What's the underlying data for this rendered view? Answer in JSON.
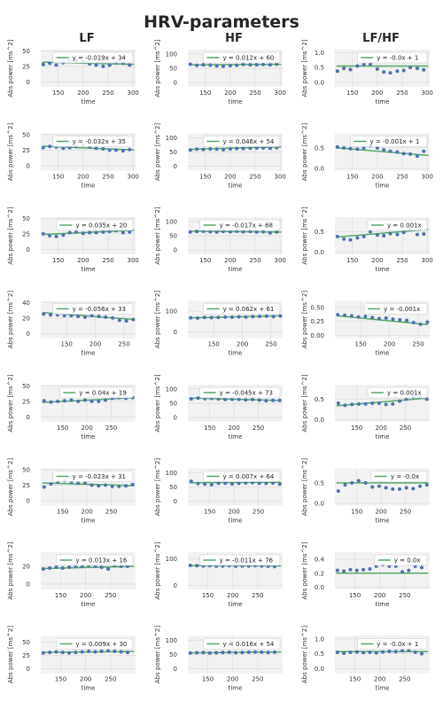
{
  "chart_data": {
    "type": "scatter",
    "title": "HRV-parameters",
    "columns": [
      "LF",
      "HF",
      "LF/HF"
    ],
    "xlabel": "time",
    "ylabel": "Abs power [ms^2]",
    "colors": {
      "points": "#4c72b0",
      "fit": "#55a868",
      "background": "#f2f2f2",
      "grid": "#dddddd"
    },
    "grid": true,
    "legend_position": "upper-right",
    "rows": [
      {
        "xlim": [
          115,
          305
        ],
        "xticks": [
          150,
          200,
          250,
          300
        ],
        "x": [
          120,
          133,
          146,
          160,
          173,
          186,
          200,
          213,
          226,
          240,
          253,
          266,
          280,
          293
        ],
        "panels": [
          {
            "column": "LF",
            "ylim": [
              -8,
              52
            ],
            "yticks": [
              0,
              25,
              50
            ],
            "fit": "y = -0.019x + 34",
            "slope": -0.019,
            "intercept": 34,
            "y": [
              28,
              30,
              27,
              31,
              35,
              34,
              33,
              29,
              27,
              25,
              27,
              31,
              30,
              27
            ]
          },
          {
            "column": "HF",
            "ylim": [
              -15,
              115
            ],
            "yticks": [
              0,
              50,
              100
            ],
            "fit": "y = 0.012x + 60",
            "slope": 0.012,
            "intercept": 60,
            "y": [
              64,
              60,
              62,
              61,
              58,
              57,
              59,
              60,
              63,
              62,
              62,
              63,
              62,
              64
            ]
          },
          {
            "column": "LF/HF",
            "ylim": [
              -0.15,
              1.1
            ],
            "yticks": [
              0.0,
              0.5,
              1.0
            ],
            "fit": "y = -0.0x + 1",
            "slope": 0.0,
            "intercept": 0.55,
            "y": [
              0.38,
              0.47,
              0.43,
              0.55,
              0.6,
              0.62,
              0.45,
              0.35,
              0.32,
              0.38,
              0.4,
              0.5,
              0.47,
              0.42
            ]
          }
        ]
      },
      {
        "xlim": [
          115,
          305
        ],
        "xticks": [
          150,
          200,
          250,
          300
        ],
        "x": [
          120,
          133,
          146,
          160,
          173,
          186,
          200,
          213,
          226,
          240,
          253,
          266,
          280,
          293
        ],
        "panels": [
          {
            "column": "LF",
            "ylim": [
              -8,
              52
            ],
            "yticks": [
              0,
              25,
              50
            ],
            "fit": "y = -0.032x + 35",
            "slope": -0.032,
            "intercept": 35,
            "y": [
              29,
              31,
              30,
              28,
              29,
              31,
              33,
              30,
              28,
              27,
              25,
              25,
              24,
              26
            ]
          },
          {
            "column": "HF",
            "ylim": [
              -15,
              115
            ],
            "yticks": [
              0,
              50,
              100
            ],
            "fit": "y = 0.046x + 54",
            "slope": 0.046,
            "intercept": 54,
            "y": [
              57,
              60,
              59,
              61,
              60,
              58,
              61,
              62,
              62,
              63,
              64,
              64,
              63,
              65
            ]
          },
          {
            "column": "LF/HF",
            "ylim": [
              -0.05,
              0.85
            ],
            "yticks": [
              0.0,
              0.5
            ],
            "fit": "y = -0.001x + 1",
            "slope": -0.001,
            "intercept": 0.62,
            "y": [
              0.52,
              0.5,
              0.48,
              0.47,
              0.5,
              0.55,
              0.5,
              0.45,
              0.42,
              0.4,
              0.36,
              0.35,
              0.3,
              0.42
            ]
          }
        ]
      },
      {
        "xlim": [
          115,
          305
        ],
        "xticks": [
          150,
          200,
          250,
          300
        ],
        "x": [
          120,
          133,
          146,
          160,
          173,
          186,
          200,
          213,
          226,
          240,
          253,
          266,
          280,
          293
        ],
        "panels": [
          {
            "column": "LF",
            "ylim": [
              -8,
              52
            ],
            "yticks": [
              0,
              25,
              50
            ],
            "fit": "y = 0.035x + 20",
            "slope": 0.035,
            "intercept": 20,
            "y": [
              25,
              22,
              21,
              23,
              27,
              28,
              26,
              27,
              27,
              28,
              29,
              30,
              27,
              28
            ]
          },
          {
            "column": "HF",
            "ylim": [
              -15,
              115
            ],
            "yticks": [
              0,
              50,
              100
            ],
            "fit": "y = -0.017x + 68",
            "slope": -0.017,
            "intercept": 68,
            "y": [
              63,
              65,
              66,
              64,
              63,
              65,
              64,
              66,
              64,
              65,
              63,
              64,
              60,
              63
            ]
          },
          {
            "column": "LF/HF",
            "ylim": [
              -0.05,
              0.85
            ],
            "yticks": [
              0.0,
              0.5
            ],
            "fit": "y = 0.001x",
            "slope": 0.001,
            "intercept": 0.25,
            "y": [
              0.38,
              0.32,
              0.3,
              0.35,
              0.38,
              0.5,
              0.42,
              0.4,
              0.45,
              0.43,
              0.48,
              0.55,
              0.43,
              0.44
            ]
          }
        ]
      },
      {
        "xlim": [
          105,
          270
        ],
        "xticks": [
          150,
          200,
          250
        ],
        "x": [
          110,
          122,
          134,
          146,
          158,
          170,
          182,
          194,
          206,
          218,
          230,
          242,
          254,
          266
        ],
        "panels": [
          {
            "column": "LF",
            "ylim": [
              -6,
              42
            ],
            "yticks": [
              0,
              20,
              40
            ],
            "fit": "y = -0.056x + 33",
            "slope": -0.056,
            "intercept": 33,
            "y": [
              25,
              24,
              24,
              23,
              23,
              22,
              21,
              23,
              22,
              21,
              20,
              17,
              16,
              18
            ]
          },
          {
            "column": "HF",
            "ylim": [
              -30,
              150
            ],
            "yticks": [
              0,
              100
            ],
            "fit": "y = 0.062x + 61",
            "slope": 0.062,
            "intercept": 61,
            "y": [
              68,
              67,
              70,
              69,
              70,
              72,
              71,
              73,
              72,
              74,
              75,
              76,
              74,
              77
            ]
          },
          {
            "column": "LF/HF",
            "ylim": [
              -0.05,
              0.62
            ],
            "yticks": [
              0.0,
              0.25,
              0.5
            ],
            "fit": "y = -0.001x",
            "slope": -0.001,
            "intercept": 0.46,
            "y": [
              0.37,
              0.36,
              0.35,
              0.33,
              0.34,
              0.32,
              0.3,
              0.31,
              0.29,
              0.28,
              0.27,
              0.23,
              0.2,
              0.24
            ]
          }
        ]
      },
      {
        "xlim": [
          105,
          300
        ],
        "xticks": [
          150,
          200,
          250
        ],
        "x": [
          112,
          126,
          140,
          154,
          168,
          182,
          196,
          210,
          224,
          238,
          252,
          266,
          280,
          294
        ],
        "panels": [
          {
            "column": "LF",
            "ylim": [
              -8,
              52
            ],
            "yticks": [
              0,
              25,
              50
            ],
            "fit": "y = 0.04x + 19",
            "slope": 0.04,
            "intercept": 19,
            "y": [
              26,
              24,
              25,
              26,
              27,
              25,
              27,
              25,
              25,
              27,
              30,
              31,
              30,
              31
            ]
          },
          {
            "column": "HF",
            "ylim": [
              -15,
              115
            ],
            "yticks": [
              0,
              50,
              100
            ],
            "fit": "y = -0.045x + 73",
            "slope": -0.045,
            "intercept": 73,
            "y": [
              65,
              68,
              66,
              67,
              65,
              63,
              64,
              64,
              62,
              63,
              61,
              59,
              60,
              60
            ]
          },
          {
            "column": "LF/HF",
            "ylim": [
              -0.05,
              0.85
            ],
            "yticks": [
              0.0,
              0.5
            ],
            "fit": "y = 0.001x",
            "slope": 0.001,
            "intercept": 0.23,
            "y": [
              0.4,
              0.35,
              0.37,
              0.38,
              0.38,
              0.4,
              0.4,
              0.37,
              0.38,
              0.45,
              0.5,
              0.55,
              0.55,
              0.5
            ]
          }
        ]
      },
      {
        "xlim": [
          105,
          300
        ],
        "xticks": [
          150,
          200,
          250
        ],
        "x": [
          112,
          126,
          140,
          154,
          168,
          182,
          196,
          210,
          224,
          238,
          252,
          266,
          280,
          294
        ],
        "panels": [
          {
            "column": "LF",
            "ylim": [
              -8,
              52
            ],
            "yticks": [
              0,
              25,
              50
            ],
            "fit": "y = -0.023x + 31",
            "slope": -0.023,
            "intercept": 31,
            "y": [
              22,
              27,
              30,
              32,
              30,
              28,
              29,
              25,
              24,
              25,
              23,
              23,
              24,
              26
            ]
          },
          {
            "column": "HF",
            "ylim": [
              -15,
              115
            ],
            "yticks": [
              0,
              50,
              100
            ],
            "fit": "y = 0.007x + 64",
            "slope": 0.007,
            "intercept": 64,
            "y": [
              70,
              62,
              60,
              58,
              63,
              63,
              61,
              63,
              64,
              65,
              63,
              63,
              64,
              60
            ]
          },
          {
            "column": "LF/HF",
            "ylim": [
              -0.05,
              0.85
            ],
            "yticks": [
              0.0,
              0.5
            ],
            "fit": "y = -0.0x",
            "slope": 0.0,
            "intercept": 0.5,
            "y": [
              0.3,
              0.45,
              0.5,
              0.55,
              0.5,
              0.4,
              0.42,
              0.38,
              0.35,
              0.35,
              0.38,
              0.36,
              0.42,
              0.45
            ]
          }
        ]
      },
      {
        "xlim": [
          110,
          300
        ],
        "xticks": [
          150,
          200,
          250
        ],
        "x": [
          115,
          128,
          141,
          154,
          167,
          180,
          193,
          206,
          219,
          232,
          245,
          258,
          271,
          284
        ],
        "panels": [
          {
            "column": "LF",
            "ylim": [
              -6,
              36
            ],
            "yticks": [
              0,
              20
            ],
            "fit": "y = 0.013x + 16",
            "slope": 0.013,
            "intercept": 16,
            "y": [
              17,
              18,
              19,
              18,
              19,
              20,
              20,
              21,
              20,
              19,
              17,
              21,
              20,
              20
            ]
          },
          {
            "column": "HF",
            "ylim": [
              -15,
              125
            ],
            "yticks": [
              0,
              100
            ],
            "fit": "y = -0.011x + 76",
            "slope": -0.011,
            "intercept": 76,
            "y": [
              75,
              74,
              73,
              74,
              72,
              73,
              74,
              72,
              73,
              73,
              74,
              73,
              72,
              71
            ]
          },
          {
            "column": "LF/HF",
            "ylim": [
              -0.03,
              0.5
            ],
            "yticks": [
              0.0,
              0.2,
              0.4
            ],
            "fit": "y = 0.0x",
            "slope": 0.0,
            "intercept": 0.2,
            "y": [
              0.24,
              0.23,
              0.25,
              0.24,
              0.25,
              0.26,
              0.3,
              0.32,
              0.3,
              0.3,
              0.22,
              0.24,
              0.3,
              0.28
            ]
          }
        ]
      },
      {
        "xlim": [
          110,
          300
        ],
        "xticks": [
          150,
          200,
          250
        ],
        "x": [
          115,
          128,
          141,
          154,
          167,
          180,
          193,
          206,
          219,
          232,
          245,
          258,
          271,
          284
        ],
        "panels": [
          {
            "column": "LF",
            "ylim": [
              -8,
              62
            ],
            "yticks": [
              0,
              25,
              50
            ],
            "fit": "y = 0.009x + 30",
            "slope": 0.009,
            "intercept": 30,
            "y": [
              30,
              31,
              32,
              31,
              30,
              31,
              32,
              33,
              32,
              33,
              34,
              33,
              32,
              31
            ]
          },
          {
            "column": "HF",
            "ylim": [
              -15,
              115
            ],
            "yticks": [
              0,
              50,
              100
            ],
            "fit": "y = 0.016x + 54",
            "slope": 0.016,
            "intercept": 54,
            "y": [
              55,
              56,
              57,
              55,
              56,
              57,
              58,
              56,
              57,
              58,
              59,
              58,
              57,
              58
            ]
          },
          {
            "column": "LF/HF",
            "ylim": [
              -0.15,
              1.1
            ],
            "yticks": [
              0.0,
              0.5,
              1.0
            ],
            "fit": "y = -0.0x + 1",
            "slope": 0.0,
            "intercept": 0.57,
            "y": [
              0.55,
              0.52,
              0.55,
              0.56,
              0.54,
              0.55,
              0.53,
              0.56,
              0.58,
              0.57,
              0.6,
              0.62,
              0.55,
              0.5
            ]
          }
        ]
      }
    ]
  }
}
